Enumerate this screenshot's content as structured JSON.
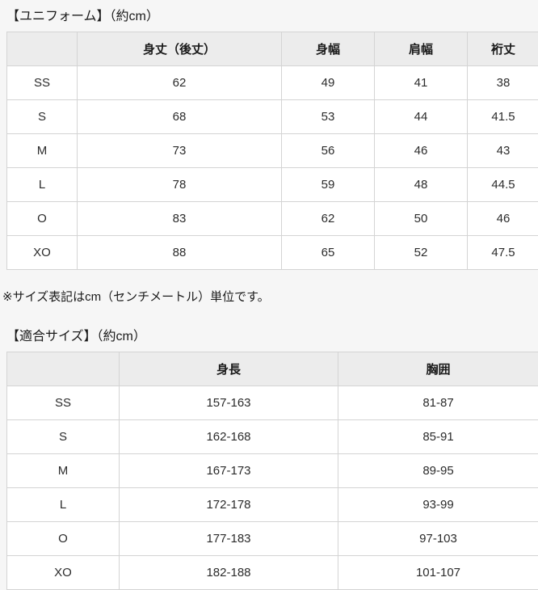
{
  "note": "※サイズ表記はcm（センチメートル）単位です。",
  "colors": {
    "page_background": "#f6f6f6",
    "table_header_background": "#ececec",
    "table_cell_background": "#ffffff",
    "table_border": "#d4d4d4",
    "text": "#222222"
  },
  "tables": [
    {
      "title": "【ユニフォーム】（約cm）",
      "columns": [
        "",
        "身丈（後丈）",
        "身幅",
        "肩幅",
        "裄丈"
      ],
      "rows": [
        [
          "SS",
          "62",
          "49",
          "41",
          "38"
        ],
        [
          "S",
          "68",
          "53",
          "44",
          "41.5"
        ],
        [
          "M",
          "73",
          "56",
          "46",
          "43"
        ],
        [
          "L",
          "78",
          "59",
          "48",
          "44.5"
        ],
        [
          "O",
          "83",
          "62",
          "50",
          "46"
        ],
        [
          "XO",
          "88",
          "65",
          "52",
          "47.5"
        ]
      ]
    },
    {
      "title": "【適合サイズ】（約cm）",
      "columns": [
        "",
        "身長",
        "胸囲"
      ],
      "rows": [
        [
          "SS",
          "157-163",
          "81-87"
        ],
        [
          "S",
          "162-168",
          "85-91"
        ],
        [
          "M",
          "167-173",
          "89-95"
        ],
        [
          "L",
          "172-178",
          "93-99"
        ],
        [
          "O",
          "177-183",
          "97-103"
        ],
        [
          "XO",
          "182-188",
          "101-107"
        ]
      ]
    }
  ]
}
